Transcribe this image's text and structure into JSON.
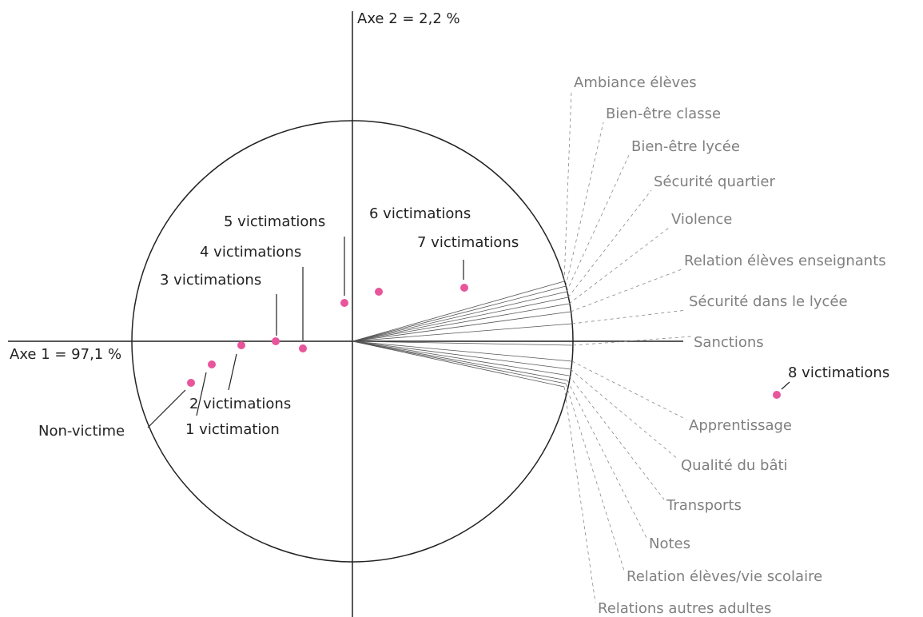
{
  "axis1_label": "Axe 1 = 97,1 %",
  "axis2_label": "Axe 2 = 2,2 %",
  "points": [
    "Non-victime",
    "1 victimation",
    "2 victimations",
    "3 victimations",
    "4 victimations",
    "5 victimations",
    "6 victimations",
    "7 victimations",
    "8 victimations"
  ],
  "variables": [
    "Ambiance élèves",
    "Bien-être classe",
    "Bien-être lycée",
    "Sécurité quartier",
    "Violence",
    "Relation élèves enseignants",
    "Sécurité dans le lycée",
    "Sanctions",
    "Apprentissage",
    "Qualité du bâti",
    "Transports",
    "Notes",
    "Relation élèves/vie scolaire",
    "Relations autres adultes"
  ]
}
